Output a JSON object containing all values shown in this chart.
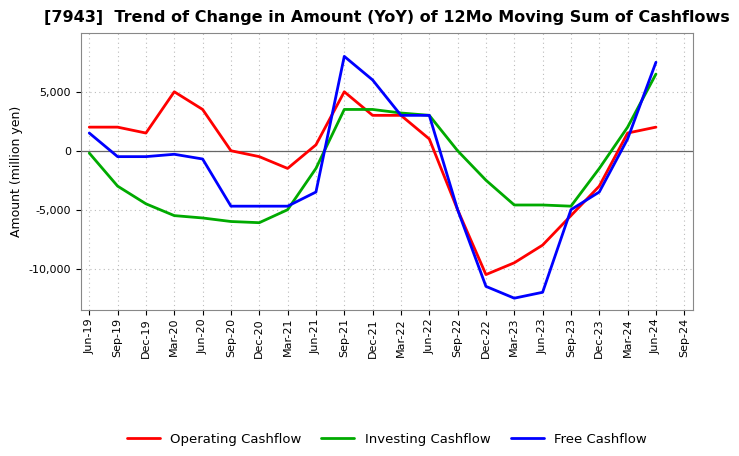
{
  "title": "[7943]  Trend of Change in Amount (YoY) of 12Mo Moving Sum of Cashflows",
  "ylabel": "Amount (million yen)",
  "xlabel_labels": [
    "Jun-19",
    "Sep-19",
    "Dec-19",
    "Mar-20",
    "Jun-20",
    "Sep-20",
    "Dec-20",
    "Mar-21",
    "Jun-21",
    "Sep-21",
    "Dec-21",
    "Mar-22",
    "Jun-22",
    "Sep-22",
    "Dec-22",
    "Mar-23",
    "Jun-23",
    "Sep-23",
    "Dec-23",
    "Mar-24",
    "Jun-24",
    "Sep-24"
  ],
  "operating": [
    2000,
    2000,
    1500,
    5000,
    3500,
    0,
    -500,
    -1500,
    500,
    5000,
    3000,
    3000,
    1000,
    -5000,
    -10500,
    -9500,
    -8000,
    -5500,
    -3000,
    1500,
    2000,
    null
  ],
  "investing": [
    -200,
    -3000,
    -4500,
    -5500,
    -5700,
    -6000,
    -6100,
    -5000,
    -1500,
    3500,
    3500,
    3200,
    3000,
    0,
    -2500,
    -4600,
    -4600,
    -4700,
    -1500,
    2000,
    6500,
    null
  ],
  "free_cashflow": [
    1500,
    -500,
    -500,
    -300,
    -700,
    -4700,
    -4700,
    -4700,
    -3500,
    8000,
    6000,
    3000,
    3000,
    -5000,
    -11500,
    -12500,
    -12000,
    -5000,
    -3500,
    1000,
    7500,
    null
  ],
  "operating_color": "#ff0000",
  "investing_color": "#00aa00",
  "free_color": "#0000ff",
  "ylim": [
    -13500,
    10000
  ],
  "yticks": [
    -10000,
    -5000,
    0,
    5000
  ],
  "background_color": "#ffffff",
  "grid_color": "#bbbbbb",
  "title_fontsize": 11.5,
  "axis_fontsize": 9,
  "tick_fontsize": 8,
  "legend_fontsize": 9.5
}
